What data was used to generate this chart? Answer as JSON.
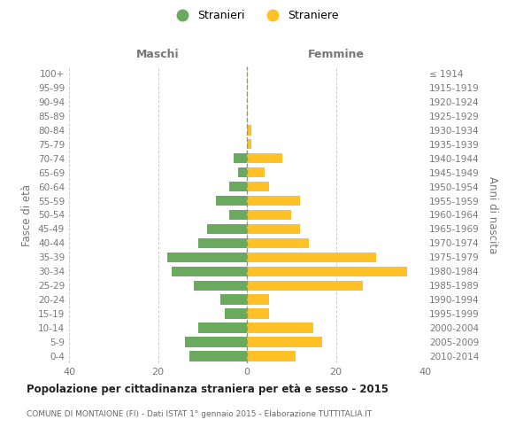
{
  "age_groups": [
    "100+",
    "95-99",
    "90-94",
    "85-89",
    "80-84",
    "75-79",
    "70-74",
    "65-69",
    "60-64",
    "55-59",
    "50-54",
    "45-49",
    "40-44",
    "35-39",
    "30-34",
    "25-29",
    "20-24",
    "15-19",
    "10-14",
    "5-9",
    "0-4"
  ],
  "birth_years": [
    "≤ 1914",
    "1915-1919",
    "1920-1924",
    "1925-1929",
    "1930-1934",
    "1935-1939",
    "1940-1944",
    "1945-1949",
    "1950-1954",
    "1955-1959",
    "1960-1964",
    "1965-1969",
    "1970-1974",
    "1975-1979",
    "1980-1984",
    "1985-1989",
    "1990-1994",
    "1995-1999",
    "2000-2004",
    "2005-2009",
    "2010-2014"
  ],
  "maschi": [
    0,
    0,
    0,
    0,
    0,
    0,
    3,
    2,
    4,
    7,
    4,
    9,
    11,
    18,
    17,
    12,
    6,
    5,
    11,
    14,
    13
  ],
  "femmine": [
    0,
    0,
    0,
    0,
    1,
    1,
    8,
    4,
    5,
    12,
    10,
    12,
    14,
    29,
    36,
    26,
    5,
    5,
    15,
    17,
    11
  ],
  "color_maschi": "#6aaa5e",
  "color_femmine": "#ffc125",
  "xlim": 40,
  "title": "Popolazione per cittadinanza straniera per età e sesso - 2015",
  "subtitle": "COMUNE DI MONTAIONE (FI) - Dati ISTAT 1° gennaio 2015 - Elaborazione TUTTITALIA.IT",
  "ylabel_left": "Fasce di età",
  "ylabel_right": "Anni di nascita",
  "label_maschi": "Maschi",
  "label_femmine": "Femmine",
  "legend_maschi": "Stranieri",
  "legend_femmine": "Straniere",
  "bg_color": "#ffffff",
  "grid_color": "#cccccc",
  "center_line_color": "#999966",
  "text_color": "#777777",
  "title_color": "#222222",
  "subtitle_color": "#666666"
}
